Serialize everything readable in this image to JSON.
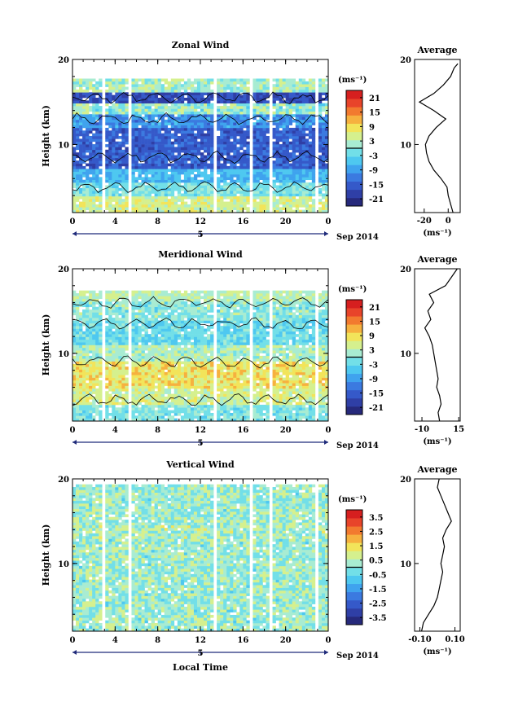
{
  "xlabel": "Local Time",
  "date_label": "Sep 2014",
  "day_label": "5",
  "unit_label": "(ms⁻¹)",
  "avg_title": "Average",
  "colors": {
    "white_gaps": "#ffffff",
    "contour": "#000000",
    "frame": "#000000"
  },
  "chart_data": [
    {
      "type": "heatmap",
      "title": "Zonal Wind",
      "ylabel": "Height (km)",
      "ylim": [
        2,
        20
      ],
      "x_ticks": [
        "0",
        "4",
        "8",
        "12",
        "16",
        "20",
        "0"
      ],
      "y_ticks": [
        "10",
        "20"
      ],
      "colorbar": {
        "label": "(ms⁻¹)",
        "ticks": [
          "21",
          "15",
          "9",
          "3",
          "-3",
          "-9",
          "-15",
          "-21"
        ],
        "range": [
          -24,
          24
        ]
      },
      "values_desc": "strong westward wind (about -15 to -21 m/s) between 6 and 12 km, weaker easterly below 5 km, mixed near 15-17 km",
      "profile": {
        "title": "Average",
        "x_ticks": [
          "-20",
          "0"
        ],
        "x_range": [
          -28,
          10
        ],
        "heights": [
          2,
          3,
          4,
          5,
          6,
          7,
          8,
          9,
          10,
          11,
          12,
          13,
          14,
          15,
          16,
          17,
          18,
          19,
          19.5
        ],
        "values": [
          4,
          2,
          0,
          -1,
          -6,
          -12,
          -16,
          -18,
          -19,
          -16,
          -10,
          -2,
          -12,
          -24,
          -12,
          -4,
          2,
          5,
          8
        ]
      }
    },
    {
      "type": "heatmap",
      "title": "Meridional Wind",
      "ylabel": "Height (km)",
      "ylim": [
        2,
        20
      ],
      "x_ticks": [
        "0",
        "4",
        "8",
        "12",
        "16",
        "20",
        "0"
      ],
      "y_ticks": [
        "10",
        "20"
      ],
      "colorbar": {
        "label": "(ms⁻¹)",
        "ticks": [
          "21",
          "15",
          "9",
          "3",
          "-3",
          "-9",
          "-15",
          "-21"
        ],
        "range": [
          -24,
          24
        ]
      },
      "values_desc": "mostly weak northerly and southerly wind between -3 and 3 m/s with positive patches around 7-9 km",
      "profile": {
        "title": "Average",
        "x_ticks": [
          "-10",
          "15"
        ],
        "x_range": [
          -15,
          16
        ],
        "heights": [
          2,
          3,
          4,
          5,
          6,
          7,
          8,
          9,
          10,
          11,
          12,
          13,
          14,
          15,
          16,
          17,
          18,
          19,
          20
        ],
        "values": [
          2,
          1,
          3,
          2,
          0,
          1,
          0,
          -1,
          -2,
          -3,
          -5,
          -8,
          -4,
          -6,
          -2,
          -5,
          6,
          10,
          14
        ]
      }
    },
    {
      "type": "heatmap",
      "title": "Vertical Wind",
      "ylabel": "Height (km)",
      "ylim": [
        2,
        20
      ],
      "x_ticks": [
        "0",
        "4",
        "8",
        "12",
        "16",
        "20",
        "0"
      ],
      "y_ticks": [
        "10",
        "20"
      ],
      "colorbar": {
        "label": "(ms⁻¹)",
        "ticks": [
          "3.5",
          "2.5",
          "1.5",
          "0.5",
          "-0.5",
          "-1.5",
          "-2.5",
          "-3.5"
        ],
        "range": [
          -4,
          4
        ]
      },
      "values_desc": "near-zero vertical velocity, mostly between -0.5 and 0.5 m/s",
      "profile": {
        "title": "Average",
        "x_ticks": [
          "-0.10",
          "0.10"
        ],
        "x_range": [
          -0.13,
          0.13
        ],
        "heights": [
          2,
          3,
          4,
          5,
          6,
          7,
          8,
          9,
          10,
          11,
          12,
          13,
          14,
          15,
          16,
          17,
          18,
          19,
          20
        ],
        "values": [
          -0.09,
          -0.08,
          -0.05,
          -0.02,
          0.0,
          0.01,
          0.02,
          0.03,
          0.02,
          0.03,
          0.04,
          0.03,
          0.05,
          0.08,
          0.06,
          0.04,
          0.02,
          0.0,
          0.01
        ]
      }
    }
  ]
}
